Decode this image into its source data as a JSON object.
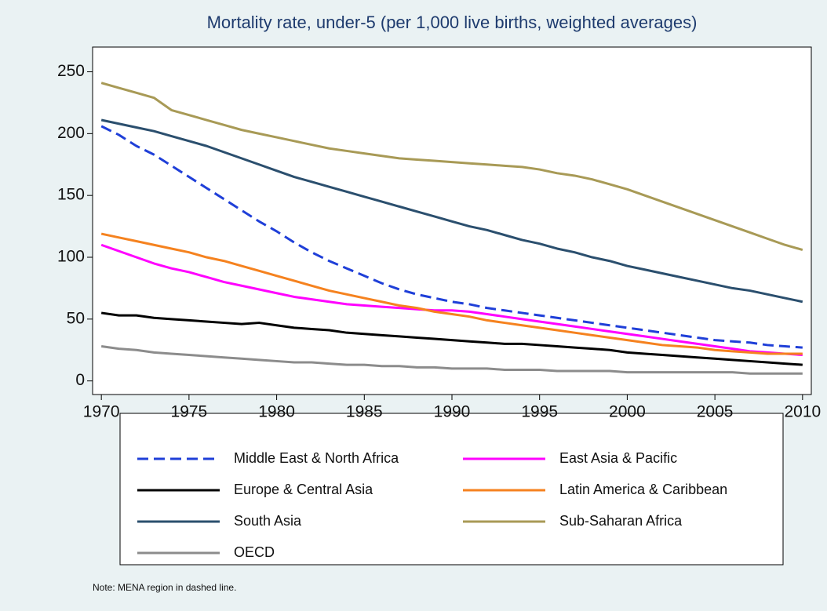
{
  "chart_data": {
    "type": "line",
    "title": "Mortality rate, under-5 (per 1,000 live births, weighted averages)",
    "note": "Note: MENA region in dashed line.",
    "x": [
      1970,
      1971,
      1972,
      1973,
      1974,
      1975,
      1976,
      1977,
      1978,
      1979,
      1980,
      1981,
      1982,
      1983,
      1984,
      1985,
      1986,
      1987,
      1988,
      1989,
      1990,
      1991,
      1992,
      1993,
      1994,
      1995,
      1996,
      1997,
      1998,
      1999,
      2000,
      2001,
      2002,
      2003,
      2004,
      2005,
      2006,
      2007,
      2008,
      2009,
      2010
    ],
    "xlim": [
      1969.5,
      2010.5
    ],
    "xticks": [
      1970,
      1975,
      1980,
      1985,
      1990,
      1995,
      2000,
      2005,
      2010
    ],
    "ylim": [
      -11,
      270
    ],
    "yticks": [
      0,
      50,
      100,
      150,
      200,
      250
    ],
    "series": [
      {
        "name": "Middle East & North Africa",
        "color": "#1f3fd8",
        "line_style": "dashed",
        "values": [
          206,
          199,
          190,
          183,
          174,
          165,
          156,
          147,
          138,
          129,
          121,
          112,
          104,
          97,
          91,
          85,
          79,
          74,
          70,
          67,
          64,
          62,
          59,
          57,
          55,
          53,
          51,
          49,
          47,
          45,
          43,
          41,
          39,
          37,
          35,
          33,
          32,
          31,
          29,
          28,
          27
        ]
      },
      {
        "name": "East Asia & Pacific",
        "color": "#ff00ff",
        "line_style": "solid",
        "values": [
          110,
          105,
          100,
          95,
          91,
          88,
          84,
          80,
          77,
          74,
          71,
          68,
          66,
          64,
          62,
          61,
          60,
          59,
          58,
          57,
          57,
          56,
          54,
          52,
          50,
          48,
          46,
          44,
          42,
          40,
          38,
          36,
          34,
          32,
          30,
          28,
          26,
          24,
          23,
          22,
          21
        ]
      },
      {
        "name": "Europe & Central Asia",
        "color": "#000000",
        "line_style": "solid",
        "values": [
          55,
          53,
          53,
          51,
          50,
          49,
          48,
          47,
          46,
          47,
          45,
          43,
          42,
          41,
          39,
          38,
          37,
          36,
          35,
          34,
          33,
          32,
          31,
          30,
          30,
          29,
          28,
          27,
          26,
          25,
          23,
          22,
          21,
          20,
          19,
          18,
          17,
          16,
          15,
          14,
          13
        ]
      },
      {
        "name": "Latin America & Caribbean",
        "color": "#f5821f",
        "line_style": "solid",
        "values": [
          119,
          116,
          113,
          110,
          107,
          104,
          100,
          97,
          93,
          89,
          85,
          81,
          77,
          73,
          70,
          67,
          64,
          61,
          59,
          56,
          54,
          52,
          49,
          47,
          45,
          43,
          41,
          39,
          37,
          35,
          33,
          31,
          29,
          28,
          27,
          25,
          24,
          23,
          22,
          22,
          22
        ]
      },
      {
        "name": "South Asia",
        "color": "#2b4f6e",
        "line_style": "solid",
        "values": [
          211,
          208,
          205,
          202,
          198,
          194,
          190,
          185,
          180,
          175,
          170,
          165,
          161,
          157,
          153,
          149,
          145,
          141,
          137,
          133,
          129,
          125,
          122,
          118,
          114,
          111,
          107,
          104,
          100,
          97,
          93,
          90,
          87,
          84,
          81,
          78,
          75,
          73,
          70,
          67,
          64
        ]
      },
      {
        "name": "Sub-Saharan Africa",
        "color": "#a89a56",
        "line_style": "solid",
        "values": [
          241,
          237,
          233,
          229,
          219,
          215,
          211,
          207,
          203,
          200,
          197,
          194,
          191,
          188,
          186,
          184,
          182,
          180,
          179,
          178,
          177,
          176,
          175,
          174,
          173,
          171,
          168,
          166,
          163,
          159,
          155,
          150,
          145,
          140,
          135,
          130,
          125,
          120,
          115,
          110,
          106
        ]
      },
      {
        "name": "OECD",
        "color": "#8c8c8c",
        "line_style": "solid",
        "values": [
          28,
          26,
          25,
          23,
          22,
          21,
          20,
          19,
          18,
          17,
          16,
          15,
          15,
          14,
          13,
          13,
          12,
          12,
          11,
          11,
          10,
          10,
          10,
          9,
          9,
          9,
          8,
          8,
          8,
          8,
          7,
          7,
          7,
          7,
          7,
          7,
          7,
          6,
          6,
          6,
          6
        ]
      }
    ]
  }
}
